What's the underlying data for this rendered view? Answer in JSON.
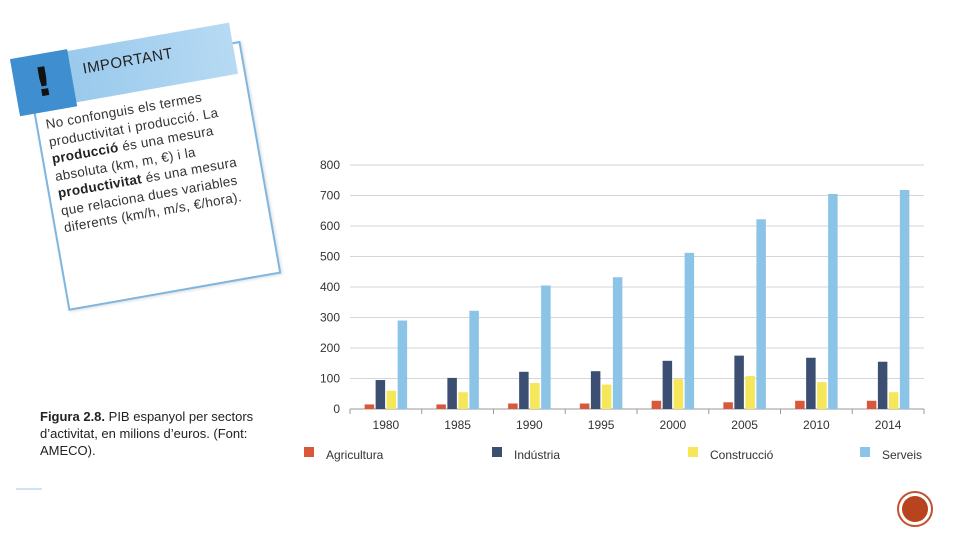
{
  "note": {
    "icon": "exclamation-icon",
    "title": "IMPORTANT",
    "text_parts": [
      {
        "t": "No confonguis els termes productivitat i producció. La ",
        "b": false
      },
      {
        "t": "producció",
        "b": true
      },
      {
        "t": " és una mesura absoluta (km, m, €) i la ",
        "b": false
      },
      {
        "t": "productivitat",
        "b": true
      },
      {
        "t": " és una mesura que relaciona dues variables diferents (km/h, m/s, €/hora).",
        "b": false
      }
    ]
  },
  "caption": {
    "label": "Figura 2.8.",
    "text": " PIB espanyol per sectors d’activitat, en milions d’euros. (Font: AMECO)."
  },
  "chart_data": {
    "type": "bar",
    "categories": [
      "1980",
      "1985",
      "1990",
      "1995",
      "2000",
      "2005",
      "2010",
      "2014"
    ],
    "ylim": [
      0,
      800
    ],
    "yticks": [
      0,
      100,
      200,
      300,
      400,
      500,
      600,
      700,
      800
    ],
    "grid": true,
    "legend_position": "bottom",
    "series": [
      {
        "name": "Agricultura",
        "color": "#d9573a",
        "values": [
          15,
          15,
          18,
          18,
          27,
          22,
          27,
          27
        ]
      },
      {
        "name": "Indústria",
        "color": "#3c4f72",
        "values": [
          95,
          102,
          122,
          124,
          158,
          175,
          168,
          155
        ]
      },
      {
        "name": "Construcció",
        "color": "#f5e65a",
        "values": [
          60,
          55,
          85,
          80,
          98,
          108,
          88,
          55
        ]
      },
      {
        "name": "Serveis",
        "color": "#8cc4e8",
        "values": [
          290,
          322,
          405,
          432,
          512,
          622,
          705,
          718
        ]
      }
    ]
  },
  "logo": {
    "icon": "circular-logo-icon",
    "color": "#b8431f"
  }
}
